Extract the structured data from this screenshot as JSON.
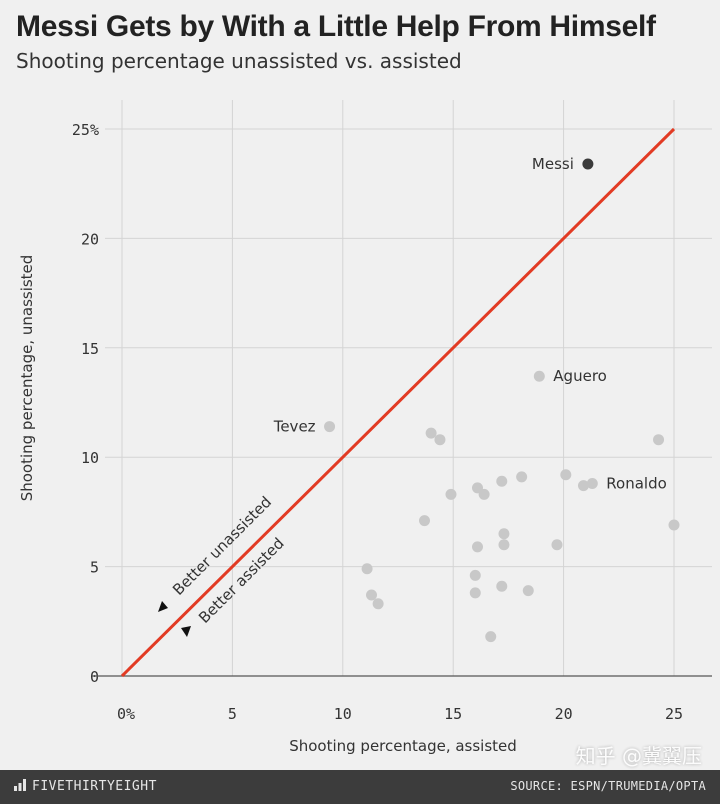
{
  "title": "Messi Gets by With a Little Help From Himself",
  "subtitle": "Shooting percentage unassisted vs. assisted",
  "footer": {
    "brand": "FIVETHIRTYEIGHT",
    "source": "SOURCE: ESPN/TRUMEDIA/OPTA",
    "watermark": "知乎 @冀翼压"
  },
  "colors": {
    "background": "#f0f0f0",
    "grid": "#d4d4d4",
    "point": "#c8c8c8",
    "highlight_point": "#3a3a3a",
    "diagonal": "#e23b24",
    "text": "#333333"
  },
  "chart_data": {
    "type": "scatter",
    "xlabel": "Shooting percentage, assisted",
    "ylabel": "Shooting percentage, unassisted",
    "xlim": [
      0,
      25
    ],
    "ylim": [
      0,
      25
    ],
    "x_ticks": [
      0,
      5,
      10,
      15,
      20,
      25
    ],
    "x_tick_labels": [
      "0%",
      "5",
      "10",
      "15",
      "20",
      "25"
    ],
    "y_ticks": [
      0,
      5,
      10,
      15,
      20,
      25
    ],
    "y_tick_labels": [
      "0",
      "5",
      "10",
      "15",
      "20",
      "25%"
    ],
    "grid": true,
    "reference_line": {
      "from": [
        0,
        0
      ],
      "to": [
        25,
        25
      ]
    },
    "annotations": [
      {
        "text": "Better unassisted",
        "arrow": "up"
      },
      {
        "text": "Better assisted",
        "arrow": "down"
      }
    ],
    "points": [
      {
        "x": 21.1,
        "y": 23.4,
        "label": "Messi",
        "highlight": true
      },
      {
        "x": 18.9,
        "y": 13.7,
        "label": "Aguero"
      },
      {
        "x": 9.4,
        "y": 11.4,
        "label": "Tevez"
      },
      {
        "x": 21.3,
        "y": 8.8,
        "label": "Ronaldo"
      },
      {
        "x": 24.3,
        "y": 10.8
      },
      {
        "x": 25.0,
        "y": 6.9
      },
      {
        "x": 14.0,
        "y": 11.1
      },
      {
        "x": 14.4,
        "y": 10.8
      },
      {
        "x": 20.1,
        "y": 9.2
      },
      {
        "x": 20.9,
        "y": 8.7
      },
      {
        "x": 18.1,
        "y": 9.1
      },
      {
        "x": 17.2,
        "y": 8.9
      },
      {
        "x": 16.1,
        "y": 8.6
      },
      {
        "x": 16.4,
        "y": 8.3
      },
      {
        "x": 14.9,
        "y": 8.3
      },
      {
        "x": 13.7,
        "y": 7.1
      },
      {
        "x": 17.3,
        "y": 6.5
      },
      {
        "x": 17.3,
        "y": 6.0
      },
      {
        "x": 16.1,
        "y": 5.9
      },
      {
        "x": 19.7,
        "y": 6.0
      },
      {
        "x": 11.1,
        "y": 4.9
      },
      {
        "x": 16.0,
        "y": 4.6
      },
      {
        "x": 17.2,
        "y": 4.1
      },
      {
        "x": 16.0,
        "y": 3.8
      },
      {
        "x": 18.4,
        "y": 3.9
      },
      {
        "x": 11.3,
        "y": 3.7
      },
      {
        "x": 11.6,
        "y": 3.3
      },
      {
        "x": 16.7,
        "y": 1.8
      }
    ]
  }
}
